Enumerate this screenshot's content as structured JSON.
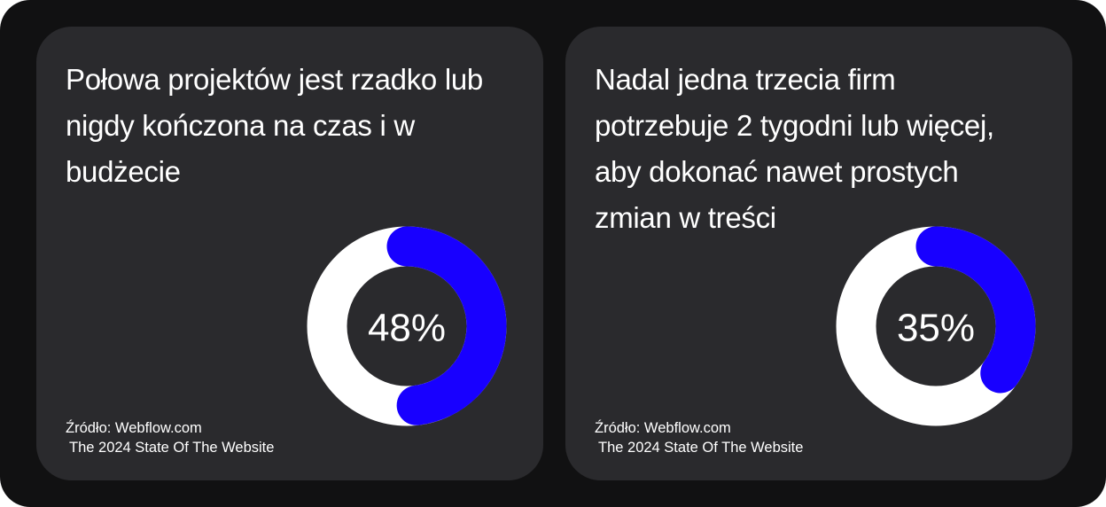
{
  "chart_data": [
    {
      "type": "donut",
      "title": "Połowa projektów jest rzadko lub nigdy kończona na czas i w budżecie",
      "values": [
        48
      ],
      "value_labels": [
        "48%"
      ],
      "color": "#1800ff",
      "source": [
        "Źródło: Webflow.com",
        "The 2024 State Of The Website"
      ]
    },
    {
      "type": "donut",
      "title": "Nadal jedna trzecia firm potrzebuje 2 tygodni lub więcej, aby dokonać nawet prostych zmian w treści",
      "values": [
        35
      ],
      "value_labels": [
        "35%"
      ],
      "color": "#1800ff",
      "source": [
        "Źródło: Webflow.com",
        "The 2024 State Of The Website"
      ]
    }
  ]
}
